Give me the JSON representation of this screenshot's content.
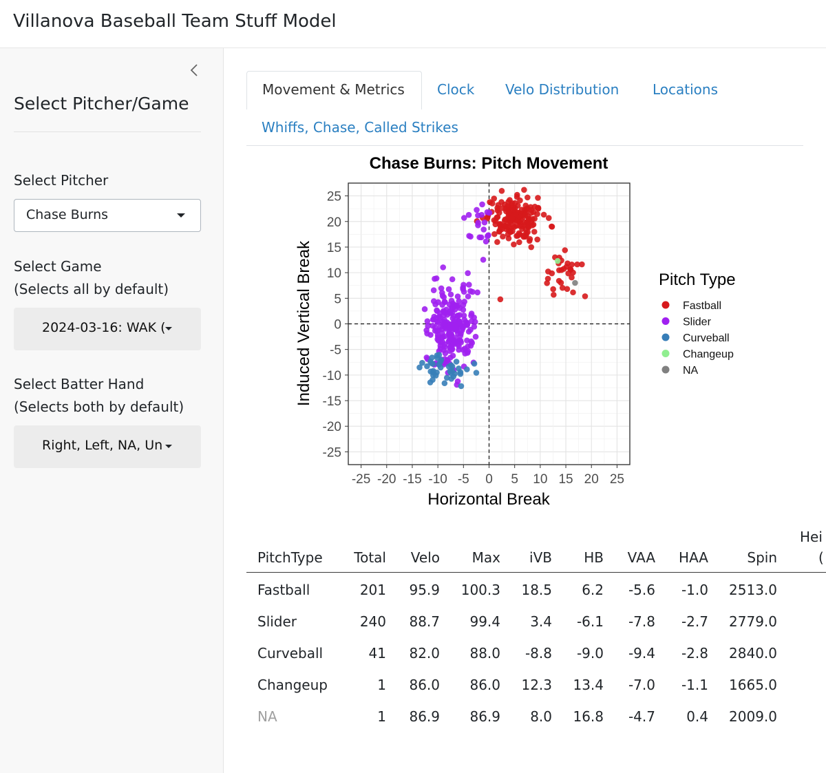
{
  "app": {
    "title": "Villanova Baseball Team Stuff Model"
  },
  "sidebar": {
    "title": "Select Pitcher/Game",
    "pitcher": {
      "label": "Select Pitcher",
      "value": "Chase Burns"
    },
    "game": {
      "label": "Select Game",
      "hint": "(Selects all by default)",
      "value": "2024-03-16: WAK ("
    },
    "hand": {
      "label": "Select Batter Hand",
      "hint": "(Selects both by default)",
      "value": "Right, Left, NA, Un"
    }
  },
  "tabs": [
    {
      "label": "Movement & Metrics",
      "active": true
    },
    {
      "label": "Clock",
      "active": false
    },
    {
      "label": "Velo Distribution",
      "active": false
    },
    {
      "label": "Locations",
      "active": false
    },
    {
      "label": "Whiffs, Chase, Called Strikes",
      "active": false
    }
  ],
  "chart_data": {
    "type": "scatter",
    "title": "Chase Burns: Pitch Movement",
    "xlabel": "Horizontal Break",
    "ylabel": "Induced Vertical Break",
    "xlim": [
      -27.5,
      27.5
    ],
    "ylim": [
      -27.5,
      27.5
    ],
    "xticks": [
      "-25",
      "-20",
      "-15",
      "-10",
      "-5",
      "0",
      "5",
      "10",
      "15",
      "20",
      "25"
    ],
    "yticks": [
      "25",
      "20",
      "15",
      "10",
      "5",
      "0",
      "-5",
      "-10",
      "-15",
      "-20",
      "-25"
    ],
    "grid": true,
    "reference_lines": {
      "x": 0,
      "y": 0,
      "style": "dashed"
    },
    "legend": {
      "title": "Pitch Type",
      "position": "right",
      "entries": [
        {
          "name": "Fastball",
          "color": "#d7191c"
        },
        {
          "name": "Slider",
          "color": "#a020f0"
        },
        {
          "name": "Curveball",
          "color": "#377eb8"
        },
        {
          "name": "Changeup",
          "color": "#90ee90"
        },
        {
          "name": "NA",
          "color": "#808080"
        }
      ]
    },
    "series": [
      {
        "name": "Fastball",
        "color": "#d7191c",
        "clusters": [
          {
            "count": 170,
            "center": [
              5.5,
              20.5
            ],
            "spread": [
              2.8,
              2.2
            ]
          },
          {
            "count": 30,
            "center": [
              14.5,
              10.0
            ],
            "spread": [
              1.8,
              2.2
            ]
          }
        ],
        "points": [
          [
            2.2,
            4.8
          ]
        ]
      },
      {
        "name": "Slider",
        "color": "#a020f0",
        "clusters": [
          {
            "count": 220,
            "center": [
              -7.5,
              -1.0
            ],
            "spread": [
              2.4,
              4.2
            ]
          },
          {
            "count": 20,
            "center": [
              -1.5,
              18.5
            ],
            "spread": [
              1.3,
              2.3
            ]
          }
        ]
      },
      {
        "name": "Curveball",
        "color": "#377eb8",
        "clusters": [
          {
            "count": 41,
            "center": [
              -8.5,
              -8.6
            ],
            "spread": [
              2.6,
              1.4
            ]
          }
        ]
      },
      {
        "name": "Changeup",
        "color": "#90ee90",
        "points": [
          [
            13.4,
            12.3
          ]
        ]
      },
      {
        "name": "NA",
        "color": "#808080",
        "points": [
          [
            16.8,
            8.0
          ]
        ]
      }
    ]
  },
  "table": {
    "columns": [
      "PitchType",
      "Total",
      "Velo",
      "Max",
      "iVB",
      "HB",
      "VAA",
      "HAA",
      "Spin",
      "Hei",
      "("
    ],
    "rows": [
      {
        "PitchType": "Fastball",
        "Total": "201",
        "Velo": "95.9",
        "Max": "100.3",
        "iVB": "18.5",
        "HB": "6.2",
        "VAA": "-5.6",
        "HAA": "-1.0",
        "Spin": "2513.0"
      },
      {
        "PitchType": "Slider",
        "Total": "240",
        "Velo": "88.7",
        "Max": "99.4",
        "iVB": "3.4",
        "HB": "-6.1",
        "VAA": "-7.8",
        "HAA": "-2.7",
        "Spin": "2779.0"
      },
      {
        "PitchType": "Curveball",
        "Total": "41",
        "Velo": "82.0",
        "Max": "88.0",
        "iVB": "-8.8",
        "HB": "-9.0",
        "VAA": "-9.4",
        "HAA": "-2.8",
        "Spin": "2840.0"
      },
      {
        "PitchType": "Changeup",
        "Total": "1",
        "Velo": "86.0",
        "Max": "86.0",
        "iVB": "12.3",
        "HB": "13.4",
        "VAA": "-7.0",
        "HAA": "-1.1",
        "Spin": "1665.0"
      },
      {
        "PitchType": "NA",
        "Total": "1",
        "Velo": "86.9",
        "Max": "86.9",
        "iVB": "8.0",
        "HB": "16.8",
        "VAA": "-4.7",
        "HAA": "0.4",
        "Spin": "2009.0"
      }
    ]
  }
}
